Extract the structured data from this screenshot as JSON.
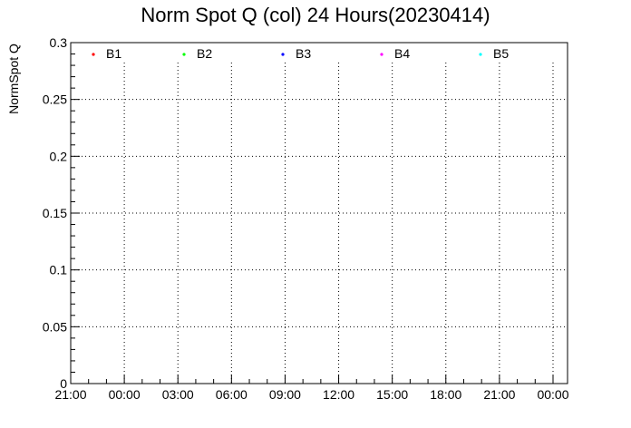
{
  "chart_data": {
    "type": "scatter",
    "title": "Norm Spot Q (col) 24 Hours(20230414)",
    "xlabel": "",
    "ylabel": "NormSpot Q",
    "ylim": [
      0,
      0.3
    ],
    "yticks": [
      "0",
      "0.05",
      "0.1",
      "0.15",
      "0.2",
      "0.25",
      "0.3"
    ],
    "xtick_labels": [
      "21:00",
      "00:00",
      "03:00",
      "06:00",
      "09:00",
      "12:00",
      "15:00",
      "18:00",
      "21:00",
      "00:00"
    ],
    "grid": true,
    "legend_position": "top",
    "series": [
      {
        "name": "B1",
        "color": "#ff0000",
        "values": []
      },
      {
        "name": "B2",
        "color": "#00ff00",
        "values": []
      },
      {
        "name": "B3",
        "color": "#0000ff",
        "values": []
      },
      {
        "name": "B4",
        "color": "#ff00ff",
        "values": []
      },
      {
        "name": "B5",
        "color": "#00ffff",
        "values": []
      }
    ]
  }
}
